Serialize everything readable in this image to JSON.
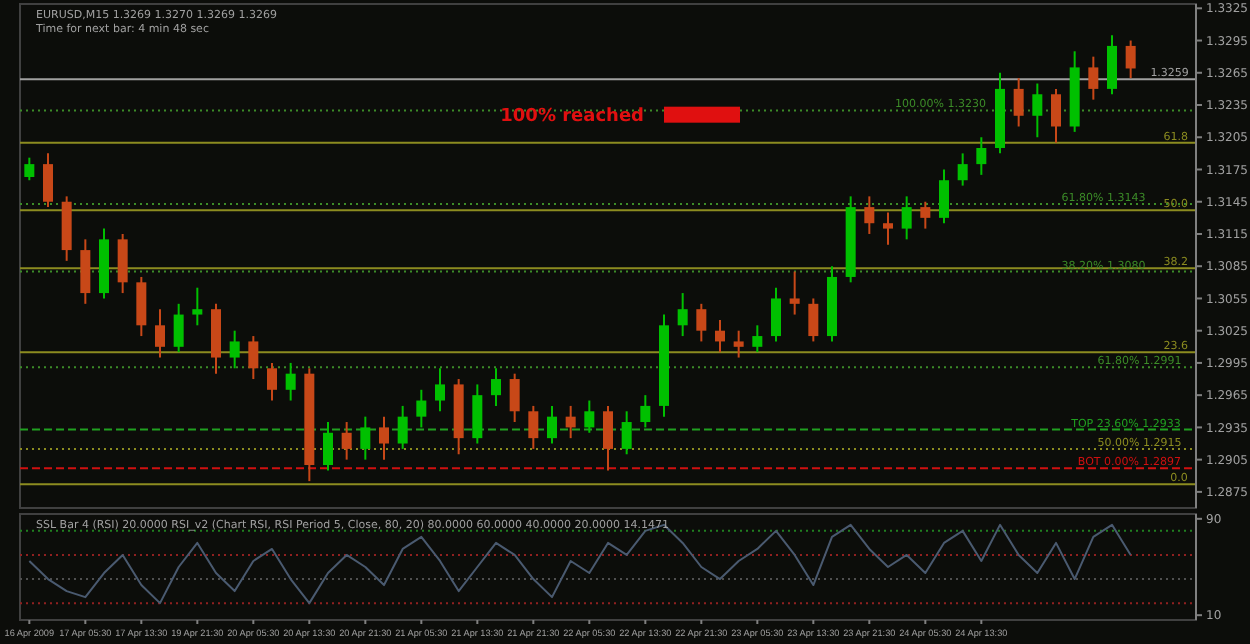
{
  "chart_data": [
    {
      "type": "candlestick",
      "title": "EURUSD,M15  1.3269 1.3270 1.3269 1.3269",
      "subtitle": "Time for next bar: 4 min 48 sec",
      "categories": [
        null,
        null,
        null,
        null,
        null,
        null,
        null,
        null,
        null,
        null,
        null,
        null,
        null,
        null,
        null,
        null,
        null,
        null,
        null,
        null,
        null,
        null,
        null,
        null,
        null,
        null,
        null,
        null,
        null,
        null,
        null,
        null,
        null,
        null,
        null,
        null,
        null,
        null,
        null,
        null,
        null,
        null,
        null,
        null,
        null,
        null,
        null,
        null,
        null,
        null,
        null,
        null,
        null,
        null,
        null,
        null,
        null,
        null,
        null,
        null,
        null,
        null,
        null
      ],
      "tick_labels": "y",
      "ylim": [
        1.286,
        1.3329
      ],
      "yticks": [
        1.3325,
        1.3295,
        1.3265,
        1.3235,
        1.3205,
        1.3175,
        1.3145,
        1.3115,
        1.3085,
        1.3055,
        1.3025,
        1.2995,
        1.2965,
        1.2935,
        1.2905,
        1.2875
      ],
      "ohlc": [
        [
          1.3168,
          1.3186,
          1.3165,
          1.318
        ],
        [
          1.318,
          1.319,
          1.314,
          1.3145
        ],
        [
          1.3145,
          1.315,
          1.309,
          1.31
        ],
        [
          1.31,
          1.311,
          1.305,
          1.306
        ],
        [
          1.306,
          1.312,
          1.3055,
          1.311
        ],
        [
          1.311,
          1.3115,
          1.306,
          1.307
        ],
        [
          1.307,
          1.3075,
          1.302,
          1.303
        ],
        [
          1.303,
          1.3045,
          1.3,
          1.301
        ],
        [
          1.301,
          1.305,
          1.3005,
          1.304
        ],
        [
          1.304,
          1.3065,
          1.303,
          1.3045
        ],
        [
          1.3045,
          1.305,
          1.2985,
          1.3
        ],
        [
          1.3,
          1.3025,
          1.299,
          1.3015
        ],
        [
          1.3015,
          1.302,
          1.298,
          1.299
        ],
        [
          1.299,
          1.2995,
          1.296,
          1.297
        ],
        [
          1.297,
          1.2995,
          1.296,
          1.2985
        ],
        [
          1.2985,
          1.299,
          1.2885,
          1.29
        ],
        [
          1.29,
          1.294,
          1.2895,
          1.293
        ],
        [
          1.293,
          1.294,
          1.2905,
          1.2915
        ],
        [
          1.2915,
          1.2945,
          1.2905,
          1.2935
        ],
        [
          1.2935,
          1.2945,
          1.2905,
          1.292
        ],
        [
          1.292,
          1.2955,
          1.2915,
          1.2945
        ],
        [
          1.2945,
          1.297,
          1.2935,
          1.296
        ],
        [
          1.296,
          1.299,
          1.295,
          1.2975
        ],
        [
          1.2975,
          1.298,
          1.291,
          1.2925
        ],
        [
          1.2925,
          1.2975,
          1.292,
          1.2965
        ],
        [
          1.2965,
          1.299,
          1.2955,
          1.298
        ],
        [
          1.298,
          1.2985,
          1.294,
          1.295
        ],
        [
          1.295,
          1.2955,
          1.2915,
          1.2925
        ],
        [
          1.2925,
          1.2955,
          1.292,
          1.2945
        ],
        [
          1.2945,
          1.2955,
          1.2925,
          1.2935
        ],
        [
          1.2935,
          1.296,
          1.293,
          1.295
        ],
        [
          1.295,
          1.2955,
          1.2895,
          1.2915
        ],
        [
          1.2915,
          1.295,
          1.291,
          1.294
        ],
        [
          1.294,
          1.2965,
          1.2935,
          1.2955
        ],
        [
          1.2955,
          1.304,
          1.2945,
          1.303
        ],
        [
          1.303,
          1.306,
          1.302,
          1.3045
        ],
        [
          1.3045,
          1.305,
          1.3015,
          1.3025
        ],
        [
          1.3025,
          1.3035,
          1.3005,
          1.3015
        ],
        [
          1.3015,
          1.3025,
          1.3,
          1.301
        ],
        [
          1.301,
          1.303,
          1.3005,
          1.302
        ],
        [
          1.302,
          1.3065,
          1.3015,
          1.3055
        ],
        [
          1.3055,
          1.308,
          1.304,
          1.305
        ],
        [
          1.305,
          1.3055,
          1.3015,
          1.302
        ],
        [
          1.302,
          1.3085,
          1.3015,
          1.3075
        ],
        [
          1.3075,
          1.315,
          1.307,
          1.314
        ],
        [
          1.314,
          1.315,
          1.3115,
          1.3125
        ],
        [
          1.3125,
          1.3135,
          1.3105,
          1.312
        ],
        [
          1.312,
          1.315,
          1.311,
          1.314
        ],
        [
          1.314,
          1.3145,
          1.312,
          1.313
        ],
        [
          1.313,
          1.3175,
          1.3125,
          1.3165
        ],
        [
          1.3165,
          1.319,
          1.316,
          1.318
        ],
        [
          1.318,
          1.3205,
          1.317,
          1.3195
        ],
        [
          1.3195,
          1.3265,
          1.319,
          1.325
        ],
        [
          1.325,
          1.326,
          1.3215,
          1.3225
        ],
        [
          1.3225,
          1.3255,
          1.3205,
          1.3245
        ],
        [
          1.3245,
          1.325,
          1.32,
          1.3215
        ],
        [
          1.3215,
          1.3285,
          1.321,
          1.327
        ],
        [
          1.327,
          1.328,
          1.324,
          1.325
        ],
        [
          1.325,
          1.33,
          1.3245,
          1.329
        ],
        [
          1.329,
          1.3295,
          1.326,
          1.3269
        ],
        null,
        null,
        null
      ],
      "ref_lines": [
        {
          "axis": "y",
          "value": 1.3259,
          "label": "1.3259",
          "color": "#a0a0a0",
          "line_style": "solid"
        },
        {
          "axis": "y",
          "value": 1.323,
          "label": "100.00%  1.3230",
          "color": "#3c8c28",
          "line_style": "dotted"
        },
        {
          "axis": "y",
          "value": 1.32,
          "color": "#8c8c20",
          "line_style": "solid"
        },
        {
          "axis": "y",
          "value": 1.3143,
          "label": "61.80%  1.3143",
          "color": "#3c8c28",
          "line_style": "dotted"
        },
        {
          "axis": "y",
          "value": 1.3137,
          "color": "#8c8c20",
          "line_style": "solid"
        },
        {
          "axis": "y",
          "value": 1.3083,
          "color": "#8c8c20",
          "line_style": "solid"
        },
        {
          "axis": "y",
          "value": 1.308,
          "label": "38.20%  1.3080",
          "color": "#3c8c28",
          "line_style": "dotted"
        },
        {
          "axis": "y",
          "value": 1.3005,
          "color": "#8c8c20",
          "line_style": "solid"
        },
        {
          "axis": "y",
          "value": 1.2991,
          "label": "61.80%  1.2991",
          "color": "#3c8c28",
          "line_style": "dotted"
        },
        {
          "axis": "y",
          "value": 1.2933,
          "label": "TOP 23.60%  1.2933",
          "color": "#20a020",
          "line_style": "dashed"
        },
        {
          "axis": "y",
          "value": 1.2915,
          "label": "50.00%  1.2915",
          "color": "#8c8c20",
          "line_style": "dotted"
        },
        {
          "axis": "y",
          "value": 1.2897,
          "label": "BOT 0.00%  1.2897",
          "color": "#d01010",
          "line_style": "dashed"
        },
        {
          "axis": "y",
          "value": 1.2882,
          "color": "#8c8c20",
          "line_style": "solid"
        }
      ],
      "annotations": [
        {
          "text": "100% reached",
          "y": 1.3226
        },
        {
          "text": "61.8",
          "y": 1.32
        },
        {
          "text": "50.0",
          "y": 1.3137
        },
        {
          "text": "38.2",
          "y": 1.3083
        },
        {
          "text": "23.6",
          "y": 1.3005
        },
        {
          "text": "0.0",
          "y": 1.2882
        }
      ]
    },
    {
      "type": "line",
      "title": "SSL Bar 4 (RSI) 20.0000   RSI_v2 (Chart RSI, RSI Period 5, Close, 80, 20) 80.0000 60.0000 40.0000 20.0000 14.1471",
      "categories": [
        "16 Apr 2009",
        null,
        null,
        "17 Apr 05:30",
        null,
        null,
        "17 Apr 13:30",
        null,
        null,
        "19 Apr 21:30",
        null,
        null,
        "20 Apr 05:30",
        null,
        null,
        "20 Apr 13:30",
        null,
        null,
        "20 Apr 21:30",
        null,
        null,
        "21 Apr 05:30",
        null,
        null,
        "21 Apr 13:30",
        null,
        null,
        "21 Apr 21:30",
        null,
        null,
        "22 Apr 05:30",
        null,
        null,
        "22 Apr 13:30",
        null,
        null,
        "22 Apr 21:30",
        null,
        null,
        "23 Apr 05:30",
        null,
        null,
        "23 Apr 13:30",
        null,
        null,
        "23 Apr 21:30",
        null,
        null,
        "24 Apr 05:30",
        null,
        null,
        "24 Apr 13:30",
        null,
        null,
        null,
        null,
        null,
        null,
        null,
        null,
        null,
        null,
        null
      ],
      "ylim": [
        6,
        94
      ],
      "yticks": [
        90,
        10
      ],
      "series": [
        {
          "color": "#4a5a70",
          "values": [
            55,
            40,
            30,
            25,
            45,
            60,
            35,
            20,
            50,
            70,
            45,
            30,
            55,
            65,
            40,
            20,
            45,
            60,
            50,
            35,
            65,
            75,
            55,
            30,
            50,
            70,
            60,
            40,
            25,
            55,
            45,
            70,
            60,
            80,
            85,
            70,
            50,
            40,
            55,
            65,
            80,
            60,
            35,
            75,
            85,
            65,
            50,
            60,
            45,
            70,
            80,
            55,
            85,
            60,
            45,
            70,
            40,
            75,
            85,
            60,
            null,
            null,
            null
          ]
        }
      ],
      "ref_lines": [
        {
          "axis": "y",
          "value": 80,
          "color": "#208020",
          "line_style": "dotted"
        },
        {
          "axis": "y",
          "value": 60,
          "color": "#902020",
          "line_style": "dotted"
        },
        {
          "axis": "y",
          "value": 40,
          "color": "#505050",
          "line_style": "dotted"
        },
        {
          "axis": "y",
          "value": 20,
          "color": "#902020",
          "line_style": "dotted"
        }
      ]
    }
  ]
}
